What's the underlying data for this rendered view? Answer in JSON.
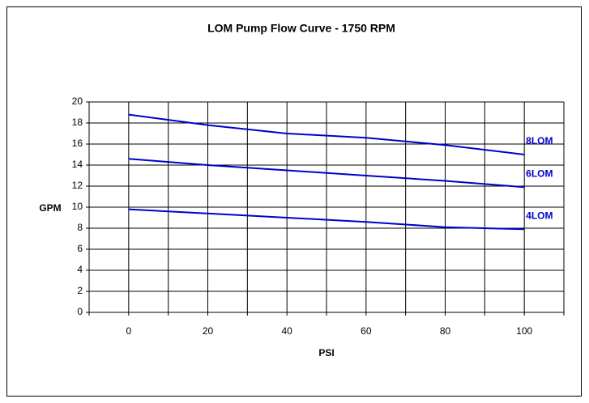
{
  "chart_data": {
    "type": "line",
    "title": "LOM Pump Flow Curve - 1750 RPM",
    "xlabel": "PSI",
    "ylabel": "GPM",
    "x": [
      0,
      20,
      40,
      60,
      80,
      100
    ],
    "series": [
      {
        "name": "8LOM",
        "color": "#0000cc",
        "values": [
          18.8,
          17.8,
          17.0,
          16.6,
          15.9,
          15.0
        ]
      },
      {
        "name": "6LOM",
        "color": "#0000cc",
        "values": [
          14.6,
          14.0,
          13.5,
          13.0,
          12.5,
          11.9
        ]
      },
      {
        "name": "4LOM",
        "color": "#0000cc",
        "values": [
          9.8,
          9.4,
          9.0,
          8.6,
          8.1,
          7.9
        ]
      }
    ],
    "xlim": [
      -10,
      110
    ],
    "xticks": [
      0,
      20,
      40,
      60,
      80,
      100
    ],
    "xgrid": [
      -10,
      0,
      10,
      20,
      30,
      40,
      50,
      60,
      70,
      80,
      90,
      100,
      110
    ],
    "ylim": [
      0,
      20
    ],
    "yticks": [
      0,
      2,
      4,
      6,
      8,
      10,
      12,
      14,
      16,
      18,
      20
    ],
    "grid": true
  }
}
